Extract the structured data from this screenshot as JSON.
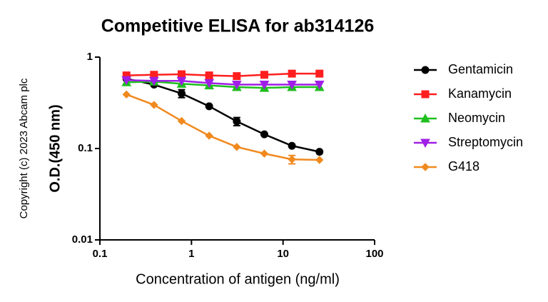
{
  "chart_data": {
    "type": "line",
    "title": "Competitive ELISA for ab314126",
    "copyright": "Copyright (c) 2023 Abcam plc",
    "x_label": "Concentration of antigen (ng/ml)",
    "y_label": "O.D.(450 nm)",
    "x_log": true,
    "y_log": true,
    "x": [
      0.195,
      0.39,
      0.78,
      1.56,
      3.125,
      6.25,
      12.5,
      25
    ],
    "xlim": [
      0.1,
      100
    ],
    "xticks": [
      0.1,
      1,
      10,
      100
    ],
    "ylim": [
      0.01,
      1
    ],
    "yticks": [
      0.01,
      0.1,
      1
    ],
    "legend": "right",
    "series": [
      {
        "name": "Gentamicin",
        "color": "#000000",
        "marker": "circle",
        "values": [
          0.58,
          0.5,
          0.4,
          0.29,
          0.198,
          0.143,
          0.107,
          0.092
        ],
        "errors": [
          null,
          null,
          0.04,
          null,
          0.02,
          null,
          null,
          null
        ]
      },
      {
        "name": "Kanamycin",
        "color": "#ff1f1f",
        "marker": "square",
        "values": [
          0.63,
          0.64,
          0.65,
          0.63,
          0.62,
          0.64,
          0.66,
          0.66
        ]
      },
      {
        "name": "Neomycin",
        "color": "#1fbf1f",
        "marker": "triangle-up",
        "values": [
          0.53,
          0.54,
          0.51,
          0.49,
          0.47,
          0.46,
          0.47,
          0.47
        ]
      },
      {
        "name": "Streptomycin",
        "color": "#a01fe6",
        "marker": "triangle-down",
        "values": [
          0.56,
          0.55,
          0.55,
          0.52,
          0.5,
          0.5,
          0.5,
          0.5
        ]
      },
      {
        "name": "G418",
        "color": "#f08a1f",
        "marker": "diamond",
        "values": [
          0.39,
          0.3,
          0.2,
          0.138,
          0.104,
          0.088,
          0.076,
          0.075
        ],
        "errors": [
          null,
          null,
          null,
          null,
          null,
          null,
          0.008,
          null
        ]
      }
    ]
  }
}
